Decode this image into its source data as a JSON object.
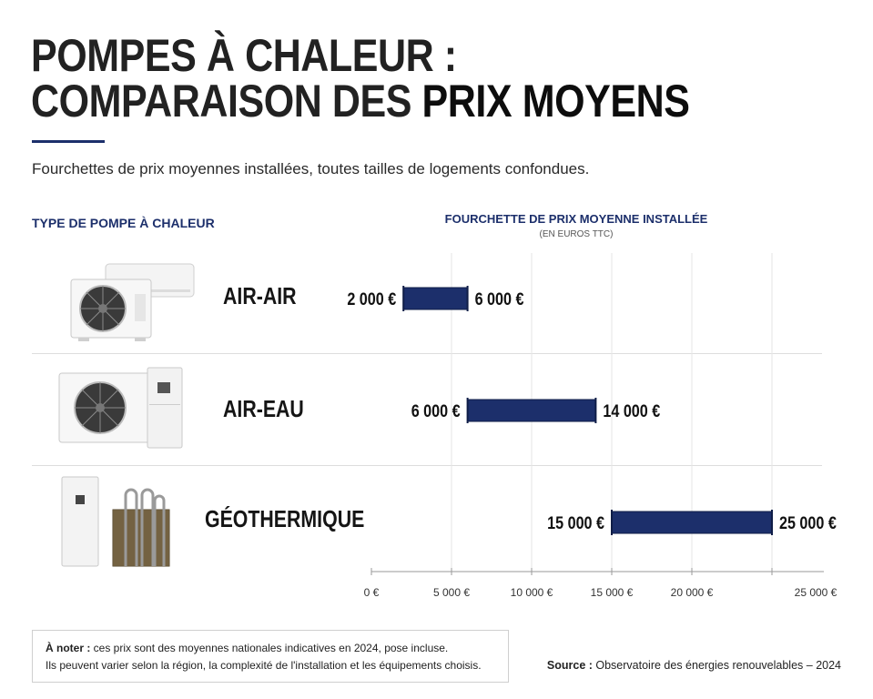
{
  "title_line1": "POMPES À CHALEUR :",
  "title_line2_a": "COMPARAISON DES ",
  "title_line2_b": "PRIX MOYENS",
  "subtitle": "Fourchettes de prix moyennes installées, toutes tailles de logements confondues.",
  "column_left": "TYPE DE POMPE À CHALEUR",
  "column_right": "FOURCHETTE DE PRIX MOYENNE INSTALLÉE",
  "column_right_sub": "(EN EUROS TTC)",
  "note_label": "À noter :",
  "note_text1": " ces prix sont des moyennes nationales indicatives en 2024, pose incluse.",
  "note_text2": "Ils peuvent varier selon la région, la complexité de l'installation et les équipements choisis.",
  "source_label": "Source :",
  "source_text": " Observatoire des énergies renouvelables – 2024",
  "chart_data": {
    "type": "bar",
    "orientation": "horizontal-range",
    "categories": [
      "AIR-AIR",
      "AIR-EAU",
      "GÉOTHERMIQUE"
    ],
    "ranges": [
      {
        "min": 2000,
        "max": 6000,
        "min_label": "2 000 €",
        "max_label": "6 000 €"
      },
      {
        "min": 6000,
        "max": 14000,
        "min_label": "6 000 €",
        "max_label": "14 000 €"
      },
      {
        "min": 15000,
        "max": 25000,
        "min_label": "15 000 €",
        "max_label": "25 000 €"
      }
    ],
    "xlim": [
      0,
      25000
    ],
    "xticks": [
      0,
      5000,
      10000,
      15000,
      20000,
      25000
    ],
    "xtick_labels": [
      "0 €",
      "5 000 €",
      "10 000 €",
      "15 000 €",
      "20 000 €",
      "25 000 €"
    ],
    "grid": "vertical",
    "bar_color": "#1c2f6b"
  }
}
